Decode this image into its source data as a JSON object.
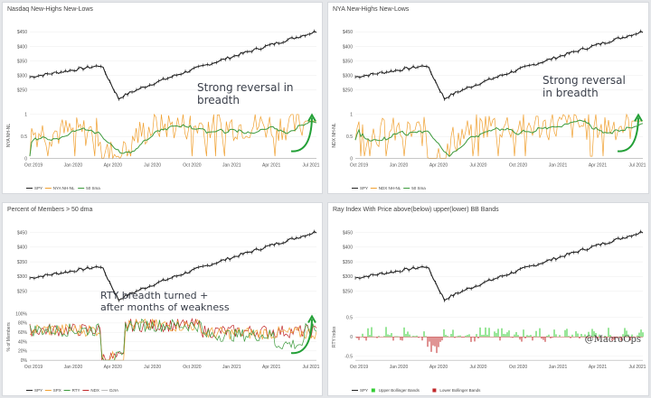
{
  "watermark": "@MacroOps",
  "colors": {
    "spx": "#222222",
    "orange": "#f0a030",
    "green": "#3c9a3c",
    "red": "#c0282a",
    "brightgreen": "#33cc33",
    "grid": "#ececec"
  },
  "chart_data": [
    {
      "type": "line",
      "title": "Nasdaq New-Highs New-Lows",
      "x_ticks": [
        "Oct 2019",
        "Jan 2020",
        "Apr 2020",
        "Jul 2020",
        "Oct 2020",
        "Jan 2021",
        "Apr 2021",
        "Jul 2021"
      ],
      "upper": {
        "ylim": [
          200,
          470
        ],
        "ticks": [
          "$450",
          "$400",
          "$350",
          "$300",
          "$250"
        ]
      },
      "lower": {
        "ylabel": "NYA NH-NL",
        "ylim": [
          0,
          1.05
        ],
        "ticks": [
          "1",
          "0.5",
          "0"
        ]
      },
      "legend": [
        "SPY",
        "NYA NH-NL",
        "50 Sma"
      ],
      "annotation": [
        "Strong reversal in",
        "breadth"
      ]
    },
    {
      "type": "line",
      "title": "NYA New-Highs New-Lows",
      "x_ticks": [
        "Oct 2019",
        "Jan 2020",
        "Apr 2020",
        "Jul 2020",
        "Oct 2020",
        "Jan 2021",
        "Apr 2021",
        "Jul 2021"
      ],
      "upper": {
        "ylim": [
          200,
          470
        ],
        "ticks": [
          "$450",
          "$400",
          "$350",
          "$300",
          "$250"
        ]
      },
      "lower": {
        "ylabel": "NDX NH-NL",
        "ylim": [
          0,
          1.05
        ],
        "ticks": [
          "1",
          "0.5",
          "0"
        ]
      },
      "legend": [
        "SPY",
        "NDX NH-NL",
        "50 Sma"
      ],
      "annotation": [
        "Strong reversal",
        "in breadth"
      ]
    },
    {
      "type": "line",
      "title": "Percent of Members > 50 dma",
      "x_ticks": [
        "Oct 2019",
        "Jan 2020",
        "Apr 2020",
        "Jul 2020",
        "Oct 2020",
        "Jan 2021",
        "Apr 2021",
        "Jul 2021"
      ],
      "upper": {
        "ylim": [
          200,
          470
        ],
        "ticks": [
          "$450",
          "$400",
          "$350",
          "$300",
          "$250"
        ]
      },
      "lower": {
        "ylabel": "% of Members",
        "ylim": [
          0,
          100
        ],
        "ticks": [
          "100%",
          "80%",
          "60%",
          "40%",
          "20%",
          "0%"
        ]
      },
      "legend": [
        "SPY",
        "SPX",
        "RTY",
        "NDX",
        "DJIA"
      ],
      "annotation": [
        "RTY breadth turned +",
        "after months of weakness"
      ]
    },
    {
      "type": "bar",
      "title": "Ray Index With Price above(below) upper(lower) BB Bands",
      "x_ticks": [
        "Oct 2019",
        "Jan 2020",
        "Apr 2020",
        "Jul 2020",
        "Oct 2020",
        "Jan 2021",
        "Apr 2021",
        "Jul 2021"
      ],
      "upper": {
        "ylim": [
          200,
          470
        ],
        "ticks": [
          "$450",
          "$400",
          "$350",
          "$300",
          "$250"
        ]
      },
      "lower": {
        "ylabel": "RTY Index",
        "ylim": [
          -0.6,
          0.6
        ],
        "ticks": [
          "0.5",
          "0",
          "-0.5"
        ]
      },
      "legend": [
        "SPY",
        "Upper Bollinger Bands",
        "Lower Bollinger Bands"
      ]
    }
  ]
}
